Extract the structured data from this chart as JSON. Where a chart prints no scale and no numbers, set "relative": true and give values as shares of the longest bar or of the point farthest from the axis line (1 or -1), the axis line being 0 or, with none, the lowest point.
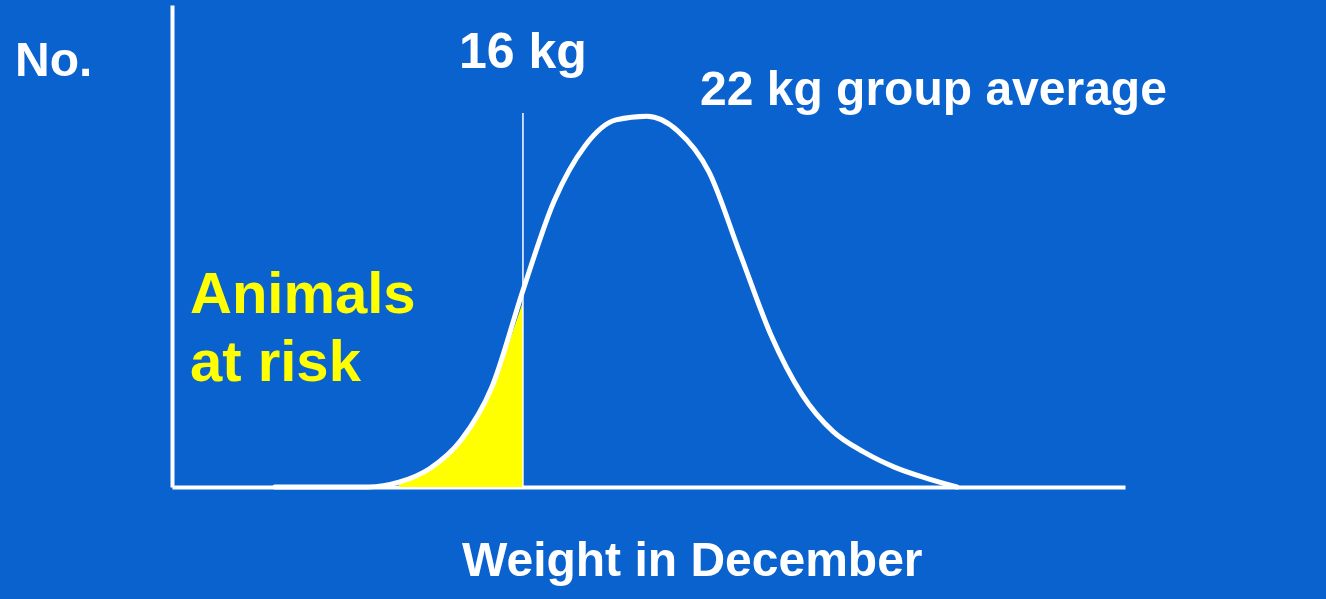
{
  "chart_data": {
    "type": "line",
    "relative": true,
    "xlabel": "Weight in December",
    "ylabel": "No.",
    "categories": [
      null,
      null,
      null,
      null,
      null,
      null,
      null,
      null,
      null,
      null,
      null,
      null,
      null,
      null,
      null,
      null,
      null,
      null,
      null,
      null,
      null,
      null,
      null
    ],
    "series": [
      {
        "color": "#ffffff",
        "values": [
          0,
          0,
          0,
          0,
          0.013,
          0.05,
          0.126,
          0.27,
          0.53,
          0.77,
          0.92,
          0.99,
          1,
          0.96,
          0.85,
          0.63,
          0.41,
          0.25,
          0.15,
          0.094,
          0.053,
          0.024,
          0
        ]
      },
      {
        "type": "area",
        "name": "Animals at risk",
        "color": "#ffff00",
        "values": [
          null,
          null,
          null,
          null,
          0.013,
          0.05,
          0.126,
          0.27,
          0.5,
          null,
          null,
          null,
          null,
          null,
          null,
          null,
          null,
          null,
          null,
          null,
          null,
          null,
          null
        ]
      }
    ],
    "ref_lines": [
      {
        "axis": "x",
        "label": "16 kg",
        "color": "#ffffff"
      }
    ],
    "annotations": [
      "22 kg group average"
    ]
  }
}
